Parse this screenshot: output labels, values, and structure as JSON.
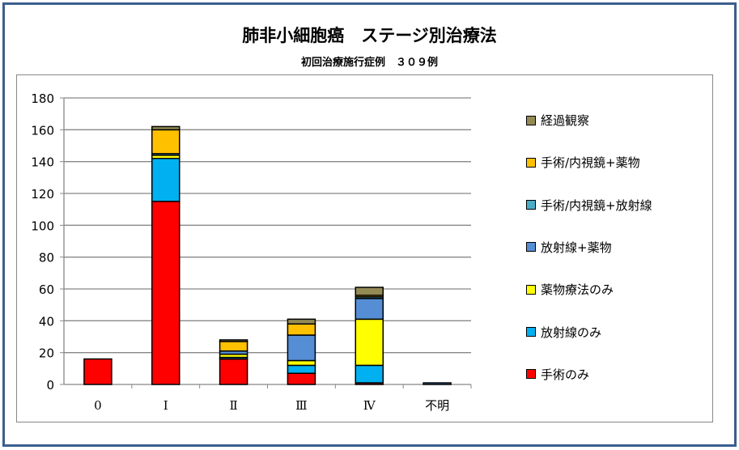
{
  "chart_data": {
    "type": "bar",
    "stacked": true,
    "title": "肺非小細胞癌　ステージ別治療法",
    "subtitle": "初回治療施行症例　３０９例",
    "xlabel": "",
    "ylabel": "",
    "categories": [
      "0",
      "Ⅰ",
      "Ⅱ",
      "Ⅲ",
      "Ⅳ",
      "不明"
    ],
    "ylim": [
      0,
      180
    ],
    "yticks": [
      "0",
      "20",
      "40",
      "60",
      "80",
      "100",
      "120",
      "140",
      "160",
      "180"
    ],
    "grid": true,
    "legend_position": "right",
    "series": [
      {
        "name": "手術のみ",
        "color": "#ff0000",
        "values": [
          16,
          115,
          16,
          7,
          1,
          0
        ]
      },
      {
        "name": "放射線のみ",
        "color": "#00b0f0",
        "values": [
          0,
          27,
          1,
          5,
          11,
          0
        ]
      },
      {
        "name": "薬物療法のみ",
        "color": "#ffff00",
        "values": [
          0,
          2,
          2,
          3,
          29,
          0
        ]
      },
      {
        "name": "放射線+薬物",
        "color": "#558ed5",
        "values": [
          0,
          0,
          2,
          16,
          13,
          1
        ]
      },
      {
        "name": "手術/内視鏡+放射線",
        "color": "#4bacc6",
        "values": [
          0,
          1,
          0,
          0,
          1,
          0
        ]
      },
      {
        "name": "手術/内視鏡+薬物",
        "color": "#ffc000",
        "values": [
          0,
          15,
          6,
          7,
          1,
          0
        ]
      },
      {
        "name": "経過観察",
        "color": "#948a54",
        "values": [
          0,
          2,
          1,
          3,
          5,
          0
        ]
      }
    ]
  }
}
